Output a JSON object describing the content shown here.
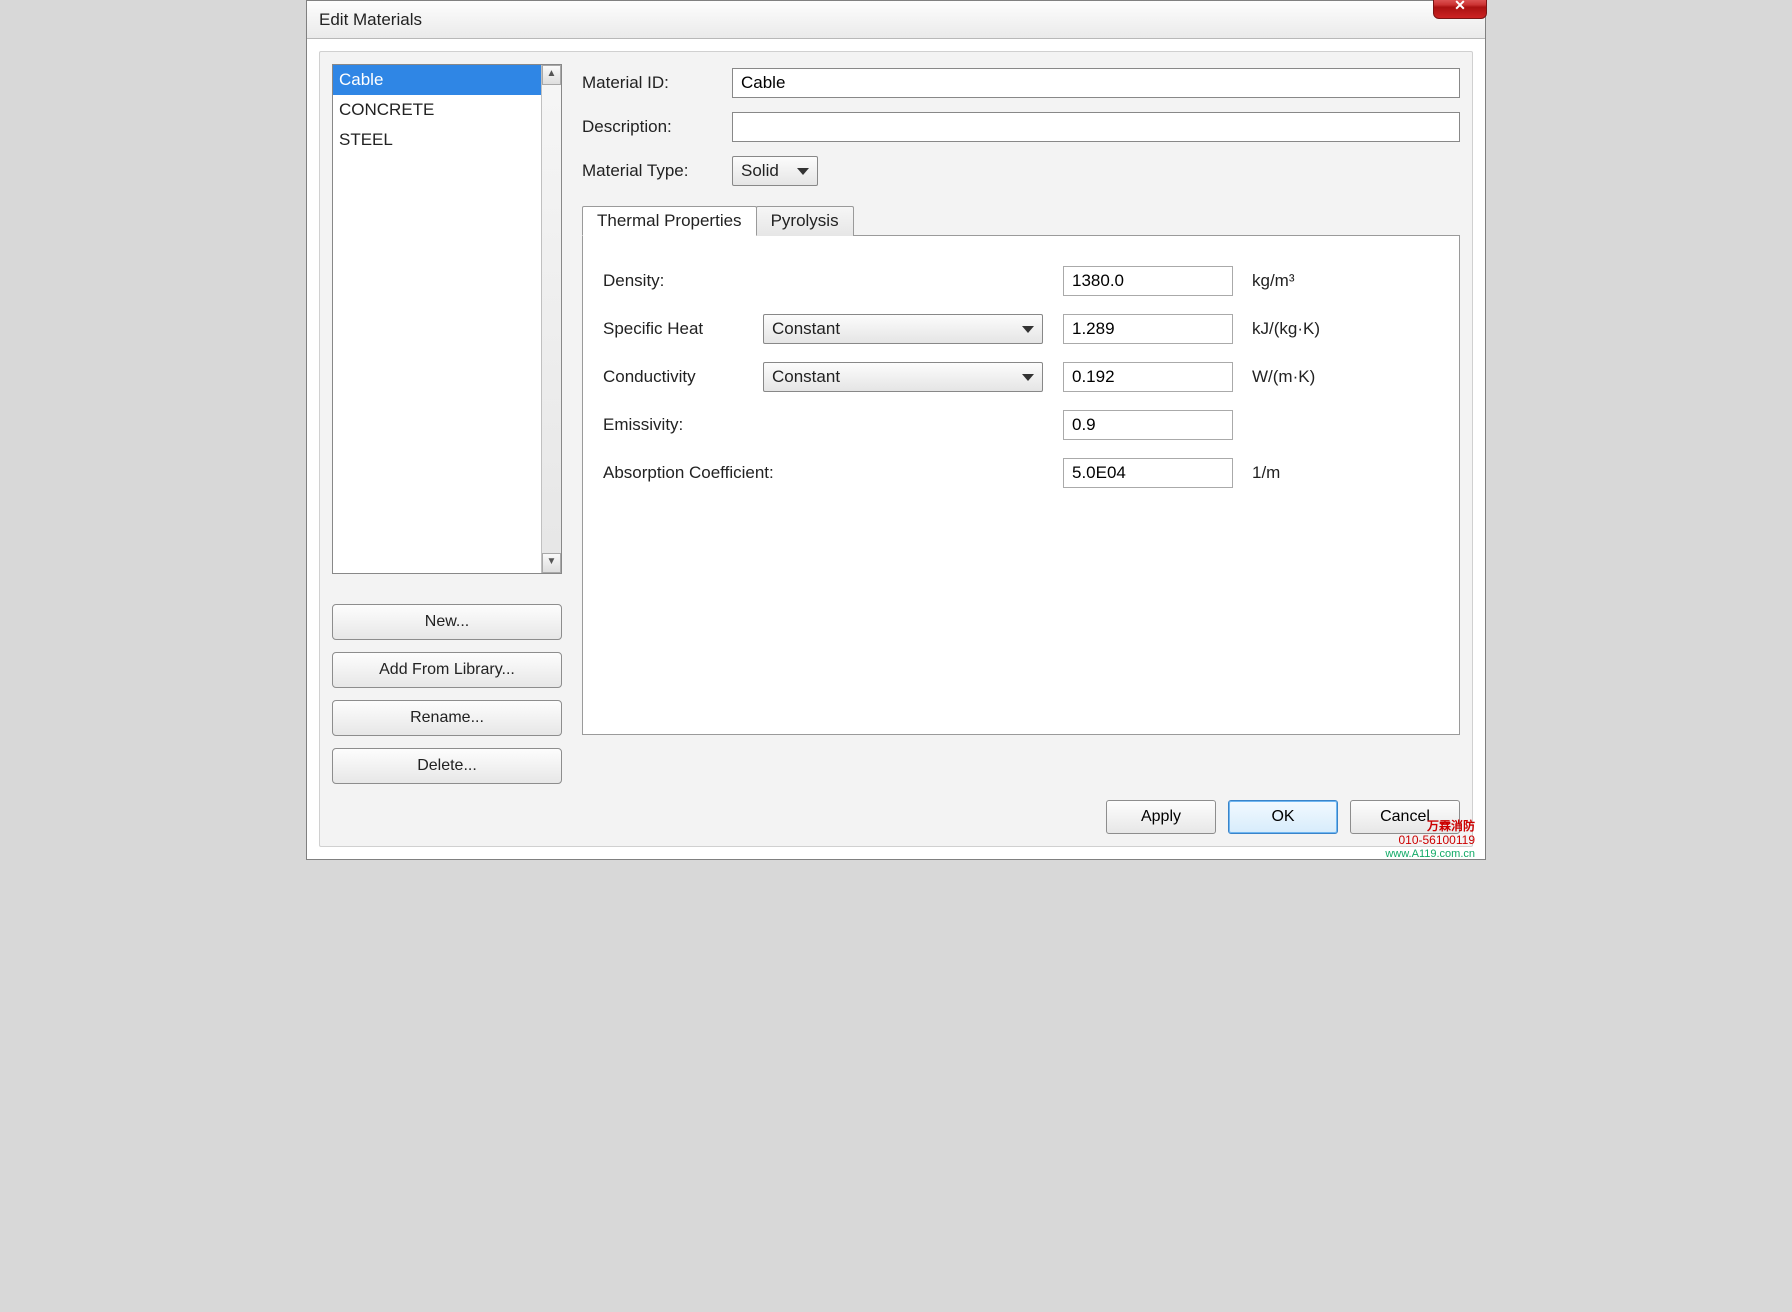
{
  "window": {
    "title": "Edit Materials"
  },
  "materials": {
    "items": [
      {
        "label": "Cable",
        "selected": true
      },
      {
        "label": "CONCRETE",
        "selected": false
      },
      {
        "label": "STEEL",
        "selected": false
      }
    ],
    "buttons": {
      "new": "New...",
      "add_from_library": "Add From Library...",
      "rename": "Rename...",
      "delete": "Delete..."
    }
  },
  "form": {
    "material_id_label": "Material ID:",
    "material_id_value": "Cable",
    "description_label": "Description:",
    "description_value": "",
    "material_type_label": "Material Type:",
    "material_type_value": "Solid"
  },
  "tabs": {
    "thermal": "Thermal Properties",
    "pyrolysis": "Pyrolysis"
  },
  "thermal": {
    "density_label": "Density:",
    "density_value": "1380.0",
    "density_unit": "kg/m³",
    "specific_heat_label": "Specific Heat",
    "specific_heat_mode": "Constant",
    "specific_heat_value": "1.289",
    "specific_heat_unit": "kJ/(kg·K)",
    "conductivity_label": "Conductivity",
    "conductivity_mode": "Constant",
    "conductivity_value": "0.192",
    "conductivity_unit": "W/(m·K)",
    "emissivity_label": "Emissivity:",
    "emissivity_value": "0.9",
    "absorption_label": "Absorption Coefficient:",
    "absorption_value": "5.0E04",
    "absorption_unit": "1/m"
  },
  "dialog": {
    "apply": "Apply",
    "ok": "OK",
    "cancel": "Cancel"
  },
  "watermark": {
    "line1": "万霖消防",
    "line2": "010-56100119",
    "line3": "www.A119.com.cn"
  }
}
